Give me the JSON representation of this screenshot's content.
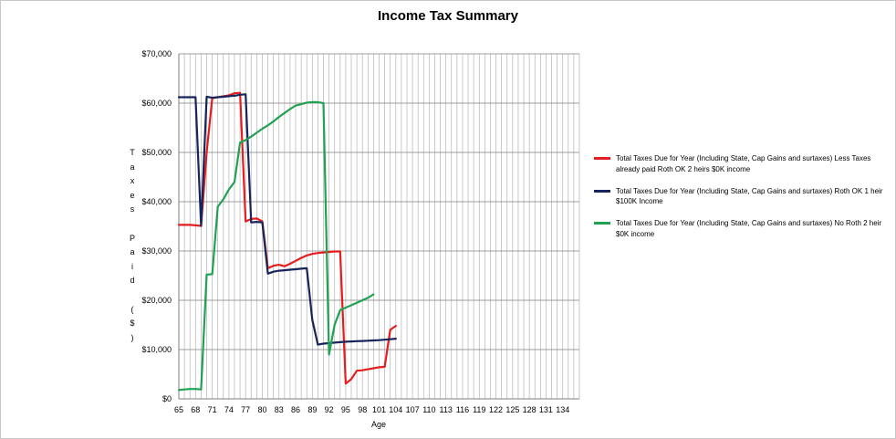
{
  "chart_data": {
    "type": "line",
    "title": "Income Tax Summary",
    "xlabel": "Age",
    "ylabel": "Taxes Paid ($)",
    "xlim": [
      65,
      137
    ],
    "ylim": [
      0,
      70000
    ],
    "y_ticks": [
      "$0",
      "$10,000",
      "$20,000",
      "$30,000",
      "$40,000",
      "$50,000",
      "$60,000",
      "$70,000"
    ],
    "x_tick_labels": [
      "65",
      "68",
      "71",
      "74",
      "77",
      "80",
      "83",
      "86",
      "89",
      "92",
      "95",
      "98",
      "101",
      "104",
      "107",
      "110",
      "113",
      "116",
      "119",
      "122",
      "125",
      "128",
      "131",
      "134"
    ],
    "grid": true,
    "legend_position": "right",
    "series": [
      {
        "name": "Total Taxes Due for Year (Including State, Cap Gains and surtaxes) Less Taxes already paid Roth OK 2 heirs $0K income",
        "color": "#e41e1e",
        "points": [
          [
            65,
            35300
          ],
          [
            66,
            35300
          ],
          [
            67,
            35300
          ],
          [
            68,
            35200
          ],
          [
            69,
            35100
          ],
          [
            70,
            50000
          ],
          [
            71,
            61000
          ],
          [
            72,
            61200
          ],
          [
            73,
            61400
          ],
          [
            74,
            61600
          ],
          [
            75,
            62000
          ],
          [
            76,
            62100
          ],
          [
            77,
            36000
          ],
          [
            78,
            36500
          ],
          [
            79,
            36600
          ],
          [
            80,
            36000
          ],
          [
            81,
            26500
          ],
          [
            82,
            27000
          ],
          [
            83,
            27200
          ],
          [
            84,
            26900
          ],
          [
            85,
            27400
          ],
          [
            86,
            28000
          ],
          [
            87,
            28600
          ],
          [
            88,
            29100
          ],
          [
            89,
            29400
          ],
          [
            90,
            29600
          ],
          [
            91,
            29700
          ],
          [
            92,
            29800
          ],
          [
            93,
            29900
          ],
          [
            94,
            29900
          ],
          [
            95,
            3100
          ],
          [
            96,
            4000
          ],
          [
            97,
            5700
          ],
          [
            98,
            5800
          ],
          [
            99,
            6000
          ],
          [
            100,
            6200
          ],
          [
            101,
            6400
          ],
          [
            102,
            6500
          ],
          [
            103,
            14000
          ],
          [
            104,
            14800
          ]
        ]
      },
      {
        "name": "Total Taxes Due for Year (Including State, Cap Gains and surtaxes) Roth OK 1 heir $100K Income",
        "color": "#17255a",
        "points": [
          [
            65,
            61200
          ],
          [
            66,
            61200
          ],
          [
            67,
            61200
          ],
          [
            68,
            61200
          ],
          [
            69,
            35100
          ],
          [
            70,
            61300
          ],
          [
            71,
            61100
          ],
          [
            72,
            61200
          ],
          [
            73,
            61300
          ],
          [
            74,
            61400
          ],
          [
            75,
            61500
          ],
          [
            76,
            61700
          ],
          [
            77,
            61800
          ],
          [
            78,
            35800
          ],
          [
            79,
            35900
          ],
          [
            80,
            35800
          ],
          [
            81,
            25400
          ],
          [
            82,
            25800
          ],
          [
            83,
            26000
          ],
          [
            84,
            26100
          ],
          [
            85,
            26200
          ],
          [
            86,
            26300
          ],
          [
            87,
            26400
          ],
          [
            88,
            26500
          ],
          [
            89,
            16000
          ],
          [
            90,
            11000
          ],
          [
            91,
            11200
          ],
          [
            92,
            11300
          ],
          [
            93,
            11400
          ],
          [
            94,
            11500
          ],
          [
            95,
            11600
          ],
          [
            96,
            11650
          ],
          [
            97,
            11700
          ],
          [
            98,
            11750
          ],
          [
            99,
            11800
          ],
          [
            100,
            11850
          ],
          [
            101,
            11900
          ],
          [
            102,
            12000
          ],
          [
            103,
            12100
          ],
          [
            104,
            12200
          ]
        ]
      },
      {
        "name": "Total Taxes Due for Year (Including State, Cap Gains and surtaxes) No Roth 2 heir $0K income",
        "color": "#21a152",
        "points": [
          [
            65,
            1800
          ],
          [
            66,
            1900
          ],
          [
            67,
            2000
          ],
          [
            68,
            2000
          ],
          [
            69,
            1900
          ],
          [
            70,
            25200
          ],
          [
            71,
            25300
          ],
          [
            72,
            39000
          ],
          [
            73,
            40500
          ],
          [
            74,
            42500
          ],
          [
            75,
            44000
          ],
          [
            76,
            52000
          ],
          [
            77,
            52500
          ],
          [
            78,
            53200
          ],
          [
            79,
            54000
          ],
          [
            80,
            54800
          ],
          [
            81,
            55500
          ],
          [
            82,
            56300
          ],
          [
            83,
            57200
          ],
          [
            84,
            58000
          ],
          [
            85,
            58800
          ],
          [
            86,
            59500
          ],
          [
            87,
            59800
          ],
          [
            88,
            60100
          ],
          [
            89,
            60200
          ],
          [
            90,
            60200
          ],
          [
            91,
            60000
          ],
          [
            92,
            9000
          ],
          [
            93,
            15000
          ],
          [
            94,
            18000
          ],
          [
            95,
            18500
          ],
          [
            96,
            19000
          ],
          [
            97,
            19500
          ],
          [
            98,
            20000
          ],
          [
            99,
            20500
          ],
          [
            100,
            21200
          ]
        ]
      }
    ]
  }
}
